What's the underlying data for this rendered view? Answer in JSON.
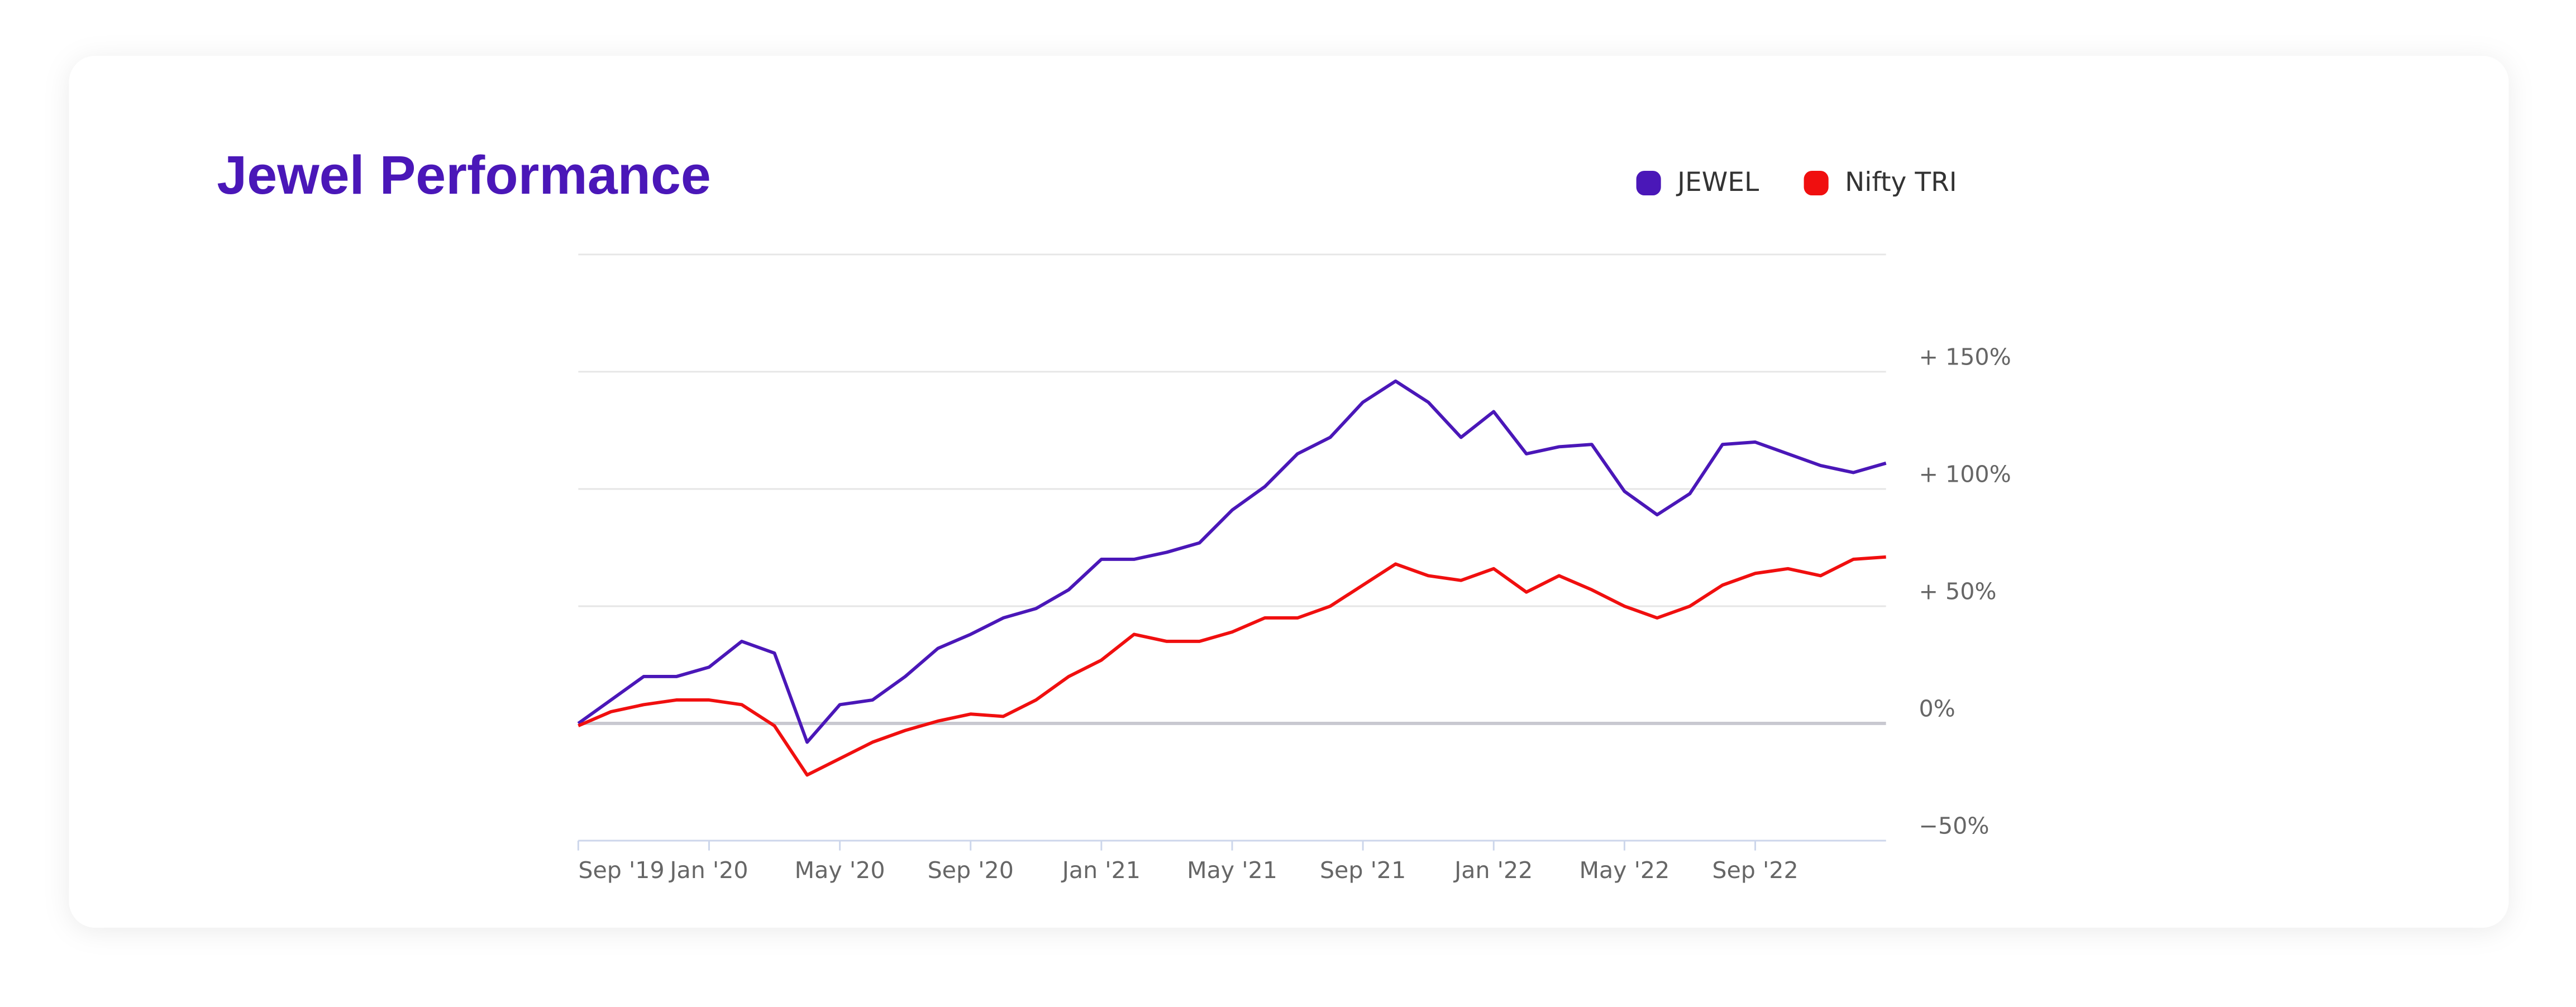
{
  "chart_data": {
    "type": "line",
    "title": "Jewel Performance",
    "x": [
      "2019-09",
      "2019-10",
      "2019-11",
      "2019-12",
      "2020-01",
      "2020-02",
      "2020-03",
      "2020-04",
      "2020-05",
      "2020-06",
      "2020-07",
      "2020-08",
      "2020-09",
      "2020-10",
      "2020-11",
      "2020-12",
      "2021-01",
      "2021-02",
      "2021-03",
      "2021-04",
      "2021-05",
      "2021-06",
      "2021-07",
      "2021-08",
      "2021-09",
      "2021-10",
      "2021-11",
      "2021-12",
      "2022-01",
      "2022-02",
      "2022-03",
      "2022-04",
      "2022-05",
      "2022-06",
      "2022-07",
      "2022-08",
      "2022-09",
      "2022-10",
      "2022-11",
      "2022-12",
      "2023-01"
    ],
    "series": [
      {
        "name": "JEWEL",
        "color": "#4a17b8",
        "values": [
          0,
          10,
          20,
          20,
          24,
          35,
          30,
          -8,
          8,
          10,
          20,
          32,
          38,
          45,
          49,
          57,
          70,
          70,
          73,
          77,
          91,
          101,
          115,
          122,
          137,
          146,
          137,
          122,
          133,
          115,
          118,
          119,
          99,
          89,
          98,
          119,
          120,
          115,
          110,
          107,
          111
        ]
      },
      {
        "name": "Nifty TRI",
        "color": "#f00f0f",
        "values": [
          -1,
          5,
          8,
          10,
          10,
          8,
          -1,
          -22,
          -15,
          -8,
          -3,
          1,
          4,
          3,
          10,
          20,
          27,
          38,
          35,
          35,
          39,
          45,
          45,
          50,
          59,
          68,
          63,
          61,
          66,
          56,
          63,
          57,
          50,
          45,
          50,
          59,
          64,
          66,
          63,
          70,
          71
        ]
      }
    ],
    "xlim": [
      "2019-09",
      "2023-01"
    ],
    "xticks": [
      {
        "value": "2019-09",
        "label": "Sep '19"
      },
      {
        "value": "2020-01",
        "label": "Jan '20"
      },
      {
        "value": "2020-05",
        "label": "May '20"
      },
      {
        "value": "2020-09",
        "label": "Sep '20"
      },
      {
        "value": "2021-01",
        "label": "Jan '21"
      },
      {
        "value": "2021-05",
        "label": "May '21"
      },
      {
        "value": "2021-09",
        "label": "Sep '21"
      },
      {
        "value": "2022-01",
        "label": "Jan '22"
      },
      {
        "value": "2022-05",
        "label": "May '22"
      },
      {
        "value": "2022-09",
        "label": "Sep '22"
      }
    ],
    "ylim": [
      -50,
      200
    ],
    "yticks": [
      {
        "value": -50,
        "label": "−50%"
      },
      {
        "value": 0,
        "label": "0%"
      },
      {
        "value": 50,
        "label": "+ 50%"
      },
      {
        "value": 100,
        "label": "+ 100%"
      },
      {
        "value": 150,
        "label": "+ 150%"
      }
    ],
    "grid": true
  }
}
